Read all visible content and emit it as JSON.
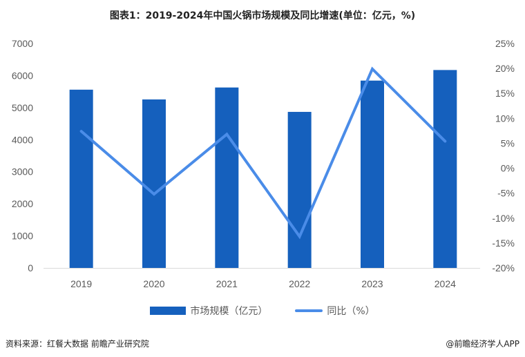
{
  "title": "图表1：2019-2024年中国火锅市场规模及同比增速(单位：亿元，%)",
  "chart_data": {
    "type": "bar+line",
    "categories": [
      "2019",
      "2020",
      "2021",
      "2022",
      "2023",
      "2024"
    ],
    "series": [
      {
        "name": "市场规模（亿元）",
        "type": "bar",
        "axis": "left",
        "color": "#1560BD",
        "values": [
          5560,
          5255,
          5628,
          4867,
          5843,
          6173
        ]
      },
      {
        "name": "同比（%）",
        "type": "line",
        "axis": "right",
        "color": "#4A8CE8",
        "values": [
          7.4,
          -5.2,
          6.8,
          -13.7,
          19.9,
          5.4
        ]
      }
    ],
    "y_left": {
      "range": [
        0,
        7000
      ],
      "ticks": [
        "0",
        "1000",
        "2000",
        "3000",
        "4000",
        "5000",
        "6000",
        "7000"
      ]
    },
    "y_right": {
      "range": [
        -20,
        25
      ],
      "ticks": [
        "-20%",
        "-15%",
        "-10%",
        "-5%",
        "0%",
        "5%",
        "10%",
        "15%",
        "20%",
        "25%"
      ]
    },
    "grid": false,
    "legend_position": "bottom"
  },
  "footer": {
    "source": "资料来源：红餐大数据 前瞻产业研究院",
    "brand": "@前瞻经济学人APP"
  }
}
